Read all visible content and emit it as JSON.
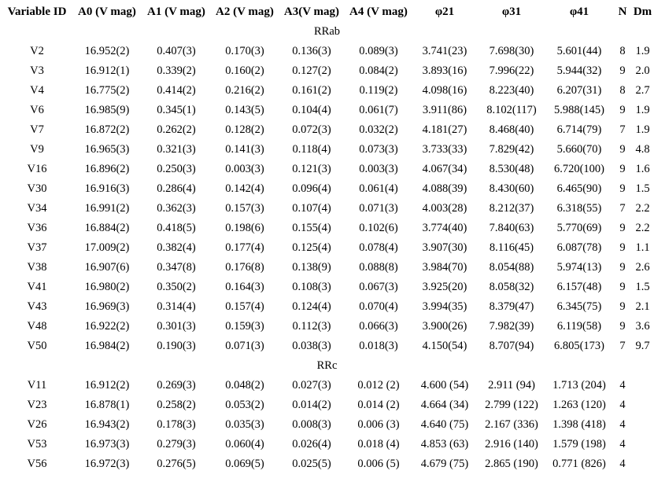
{
  "table": {
    "columns": [
      "Variable ID",
      "A0 (V mag)",
      "A1 (V mag)",
      "A2 (V mag)",
      "A3(V mag)",
      "A4 (V mag)",
      "φ21",
      "φ31",
      "φ41",
      "N",
      "Dm"
    ],
    "sections": [
      {
        "label": "RRab",
        "rows": [
          [
            "V2",
            "16.952(2)",
            "0.407(3)",
            "0.170(3)",
            "0.136(3)",
            "0.089(3)",
            "3.741(23)",
            "7.698(30)",
            "5.601(44)",
            "8",
            "1.9"
          ],
          [
            "V3",
            "16.912(1)",
            "0.339(2)",
            "0.160(2)",
            "0.127(2)",
            "0.084(2)",
            "3.893(16)",
            "7.996(22)",
            "5.944(32)",
            "9",
            "2.0"
          ],
          [
            "V4",
            "16.775(2)",
            "0.414(2)",
            "0.216(2)",
            "0.161(2)",
            "0.119(2)",
            "4.098(16)",
            "8.223(40)",
            "6.207(31)",
            "8",
            "2.7"
          ],
          [
            "V6",
            "16.985(9)",
            "0.345(1)",
            "0.143(5)",
            "0.104(4)",
            "0.061(7)",
            "3.911(86)",
            "8.102(117)",
            "5.988(145)",
            "9",
            "1.9"
          ],
          [
            "V7",
            "16.872(2)",
            "0.262(2)",
            "0.128(2)",
            "0.072(3)",
            "0.032(2)",
            "4.181(27)",
            "8.468(40)",
            "6.714(79)",
            "7",
            "1.9"
          ],
          [
            "V9",
            "16.965(3)",
            "0.321(3)",
            "0.141(3)",
            "0.118(4)",
            "0.073(3)",
            "3.733(33)",
            "7.829(42)",
            "5.660(70)",
            "9",
            "4.8"
          ],
          [
            "V16",
            "16.896(2)",
            "0.250(3)",
            "0.003(3)",
            "0.121(3)",
            "0.003(3)",
            "4.067(34)",
            "8.530(48)",
            "6.720(100)",
            "9",
            "1.6"
          ],
          [
            "V30",
            "16.916(3)",
            "0.286(4)",
            "0.142(4)",
            "0.096(4)",
            "0.061(4)",
            "4.088(39)",
            "8.430(60)",
            "6.465(90)",
            "9",
            "1.5"
          ],
          [
            "V34",
            "16.991(2)",
            "0.362(3)",
            "0.157(3)",
            "0.107(4)",
            "0.071(3)",
            "4.003(28)",
            "8.212(37)",
            "6.318(55)",
            "7",
            "2.2"
          ],
          [
            "V36",
            "16.884(2)",
            "0.418(5)",
            "0.198(6)",
            "0.155(4)",
            "0.102(6)",
            "3.774(40)",
            "7.840(63)",
            "5.770(69)",
            "9",
            "2.2"
          ],
          [
            "V37",
            "17.009(2)",
            "0.382(4)",
            "0.177(4)",
            "0.125(4)",
            "0.078(4)",
            "3.907(30)",
            "8.116(45)",
            "6.087(78)",
            "9",
            "1.1"
          ],
          [
            "V38",
            "16.907(6)",
            "0.347(8)",
            "0.176(8)",
            "0.138(9)",
            "0.088(8)",
            "3.984(70)",
            "8.054(88)",
            "5.974(13)",
            "9",
            "2.6"
          ],
          [
            "V41",
            "16.980(2)",
            "0.350(2)",
            "0.164(3)",
            "0.108(3)",
            "0.067(3)",
            "3.925(20)",
            "8.058(32)",
            "6.157(48)",
            "9",
            "1.5"
          ],
          [
            "V43",
            "16.969(3)",
            "0.314(4)",
            "0.157(4)",
            "0.124(4)",
            "0.070(4)",
            "3.994(35)",
            "8.379(47)",
            "6.345(75)",
            "9",
            "2.1"
          ],
          [
            "V48",
            "16.922(2)",
            "0.301(3)",
            "0.159(3)",
            "0.112(3)",
            "0.066(3)",
            "3.900(26)",
            "7.982(39)",
            "6.119(58)",
            "9",
            "3.6"
          ],
          [
            "V50",
            "16.984(2)",
            "0.190(3)",
            "0.071(3)",
            "0.038(3)",
            "0.018(3)",
            "4.150(54)",
            "8.707(94)",
            "6.805(173)",
            "7",
            "9.7"
          ]
        ]
      },
      {
        "label": "RRc",
        "rows": [
          [
            "V11",
            "16.912(2)",
            "0.269(3)",
            "0.048(2)",
            "0.027(3)",
            "0.012 (2)",
            "4.600 (54)",
            "2.911 (94)",
            "1.713 (204)",
            "4",
            ""
          ],
          [
            "V23",
            "16.878(1)",
            "0.258(2)",
            "0.053(2)",
            "0.014(2)",
            "0.014 (2)",
            "4.664 (34)",
            "2.799 (122)",
            "1.263 (120)",
            "4",
            ""
          ],
          [
            "V26",
            "16.943(2)",
            "0.178(3)",
            "0.035(3)",
            "0.008(3)",
            "0.006 (3)",
            "4.640 (75)",
            "2.167 (336)",
            "1.398 (418)",
            "4",
            ""
          ],
          [
            "V53",
            "16.973(3)",
            "0.279(3)",
            "0.060(4)",
            "0.026(4)",
            "0.018 (4)",
            "4.853 (63)",
            "2.916 (140)",
            "1.579 (198)",
            "4",
            ""
          ],
          [
            "V56",
            "16.972(3)",
            "0.276(5)",
            "0.069(5)",
            "0.025(5)",
            "0.006 (5)",
            "4.679 (75)",
            "2.865 (190)",
            "0.771 (826)",
            "4",
            ""
          ]
        ]
      }
    ]
  }
}
